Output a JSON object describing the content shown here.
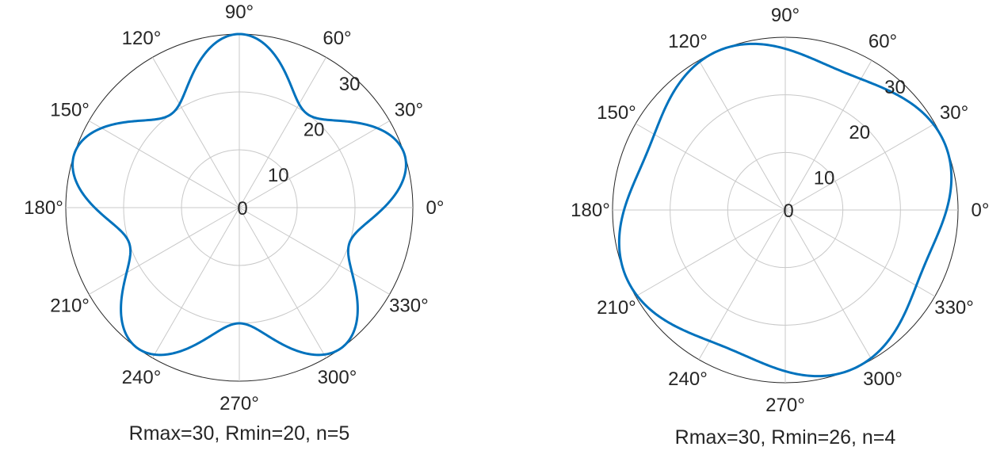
{
  "chart_data": [
    {
      "type": "line",
      "coordinate_system": "polar",
      "caption": "Rmax=30, Rmin=20, n=5",
      "r_formula": "r = (Rmax+Rmin)/2 + (Rmax-Rmin)/2 * sin(n*theta)",
      "rmax": 30,
      "rmin": 20,
      "n": 5,
      "r_ticks": [
        "0",
        "10",
        "20",
        "30"
      ],
      "r_tick_values": [
        0,
        10,
        20,
        30
      ],
      "r_limit": 30,
      "theta_ticks": [
        "0°",
        "30°",
        "60°",
        "90°",
        "120°",
        "150°",
        "180°",
        "210°",
        "240°",
        "270°",
        "300°",
        "330°"
      ],
      "theta_tick_degrees": [
        0,
        30,
        60,
        90,
        120,
        150,
        180,
        210,
        240,
        270,
        300,
        330
      ],
      "grid": true,
      "line_color": "#0072bd"
    },
    {
      "type": "line",
      "coordinate_system": "polar",
      "caption": "Rmax=30, Rmin=26, n=4",
      "r_formula": "r = (Rmax+Rmin)/2 + (Rmax-Rmin)/2 * sin(n*theta)",
      "rmax": 30,
      "rmin": 26,
      "n": 4,
      "r_ticks": [
        "0",
        "10",
        "20",
        "30"
      ],
      "r_tick_values": [
        0,
        10,
        20,
        30
      ],
      "r_limit": 30,
      "theta_ticks": [
        "0°",
        "30°",
        "60°",
        "90°",
        "120°",
        "150°",
        "180°",
        "210°",
        "240°",
        "270°",
        "300°",
        "330°"
      ],
      "theta_tick_degrees": [
        0,
        30,
        60,
        90,
        120,
        150,
        180,
        210,
        240,
        270,
        300,
        330
      ],
      "grid": true,
      "line_color": "#0072bd"
    }
  ]
}
